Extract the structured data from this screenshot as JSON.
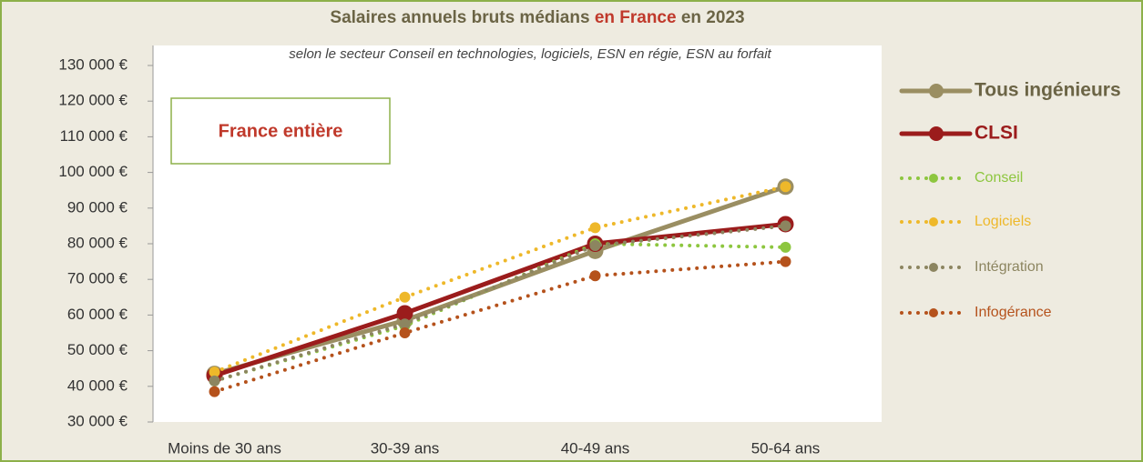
{
  "chart_data": {
    "type": "line",
    "title": [
      "Salaires annuels bruts médians",
      "en France",
      "en 2023"
    ],
    "subtitle": "selon le secteur Conseil en technologies, logiciels, ESN en régie, ESN au forfait",
    "annotation": "France entière",
    "categories": [
      "Moins de 30 ans",
      "30-39 ans",
      "40-49 ans",
      "50-64 ans"
    ],
    "ylim": [
      30000,
      130000
    ],
    "yticks": [
      {
        "value": 30000,
        "label": "30 000 €"
      },
      {
        "value": 40000,
        "label": "40 000 €"
      },
      {
        "value": 50000,
        "label": "50 000 €"
      },
      {
        "value": 60000,
        "label": "60 000 €"
      },
      {
        "value": 70000,
        "label": "70 000 €"
      },
      {
        "value": 80000,
        "label": "80 000 €"
      },
      {
        "value": 90000,
        "label": "90 000 €"
      },
      {
        "value": 100000,
        "label": "100 000 €"
      },
      {
        "value": 110000,
        "label": "110 000 €"
      },
      {
        "value": 120000,
        "label": "120 000 €"
      },
      {
        "value": 130000,
        "label": "130 000 €"
      }
    ],
    "legend": "right",
    "series": [
      {
        "name": "Tous ingénieurs",
        "color": "#9a8e62",
        "style": "solid",
        "values": [
          43500,
          58500,
          78000,
          96000
        ]
      },
      {
        "name": "CLSI",
        "color": "#9b1c1c",
        "style": "solid",
        "values": [
          43000,
          60500,
          80000,
          85500
        ]
      },
      {
        "name": "Conseil",
        "color": "#8dc63f",
        "style": "dotted",
        "values": [
          41500,
          57000,
          80000,
          79000
        ]
      },
      {
        "name": "Logiciels",
        "color": "#eeb82a",
        "style": "dotted",
        "values": [
          44000,
          65000,
          84500,
          96000
        ]
      },
      {
        "name": "Intégration",
        "color": "#8c8560",
        "style": "dotted",
        "values": [
          41500,
          57500,
          79500,
          85000
        ]
      },
      {
        "name": "Infogérance",
        "color": "#b5521c",
        "style": "dotted",
        "values": [
          38500,
          55000,
          71000,
          75000
        ]
      }
    ]
  }
}
